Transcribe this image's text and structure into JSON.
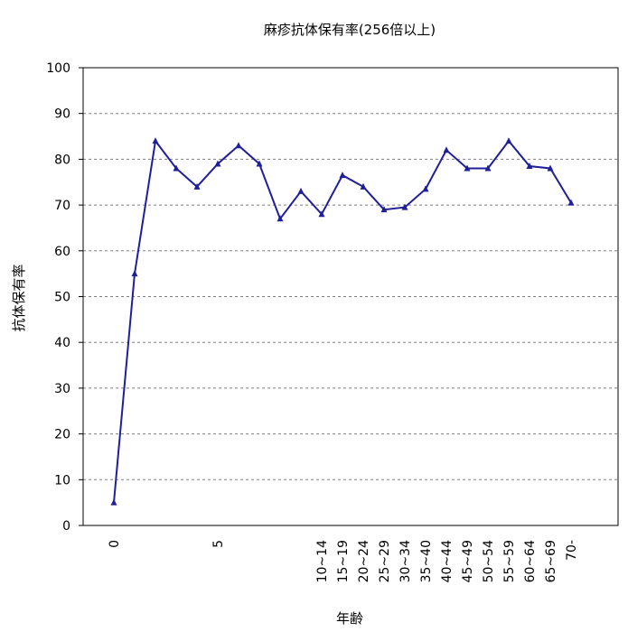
{
  "chart_data": {
    "type": "line",
    "title": "麻疹抗体保有率(256倍以上)",
    "xlabel": "年齢",
    "ylabel": "抗体保有率",
    "ylim": [
      0,
      100
    ],
    "yticks": [
      "0",
      "10",
      "20",
      "30",
      "40",
      "50",
      "60",
      "70",
      "80",
      "90",
      "100"
    ],
    "grid": "horizontal-dashed",
    "x_tick_labels": [
      {
        "label": "0",
        "x": 0
      },
      {
        "label": "5",
        "x": 5
      },
      {
        "label": "10~14",
        "x": 10
      },
      {
        "label": "15~19",
        "x": 11
      },
      {
        "label": "20~24",
        "x": 12
      },
      {
        "label": "25~29",
        "x": 13
      },
      {
        "label": "30~34",
        "x": 14
      },
      {
        "label": "35~40",
        "x": 15
      },
      {
        "label": "40~44",
        "x": 16
      },
      {
        "label": "45~49",
        "x": 17
      },
      {
        "label": "50~54",
        "x": 18
      },
      {
        "label": "55~59",
        "x": 19
      },
      {
        "label": "60~64",
        "x": 20
      },
      {
        "label": "65~69",
        "x": 21
      },
      {
        "label": "70-",
        "x": 22
      }
    ],
    "series": [
      {
        "color": "#1f1f99",
        "marker": "triangle",
        "points": [
          {
            "x": 0,
            "y": 5
          },
          {
            "x": 1,
            "y": 55
          },
          {
            "x": 2,
            "y": 84
          },
          {
            "x": 3,
            "y": 78
          },
          {
            "x": 4,
            "y": 74
          },
          {
            "x": 5,
            "y": 79
          },
          {
            "x": 6,
            "y": 83
          },
          {
            "x": 7,
            "y": 79
          },
          {
            "x": 8,
            "y": 67
          },
          {
            "x": 9,
            "y": 73
          },
          {
            "x": 10,
            "y": 68
          },
          {
            "x": 11,
            "y": 76.5
          },
          {
            "x": 12,
            "y": 74
          },
          {
            "x": 13,
            "y": 69
          },
          {
            "x": 14,
            "y": 69.5
          },
          {
            "x": 15,
            "y": 73.5
          },
          {
            "x": 16,
            "y": 82
          },
          {
            "x": 17,
            "y": 78
          },
          {
            "x": 18,
            "y": 78
          },
          {
            "x": 19,
            "y": 84
          },
          {
            "x": 20,
            "y": 78.5
          },
          {
            "x": 21,
            "y": 78
          },
          {
            "x": 22,
            "y": 70.5
          }
        ]
      }
    ]
  }
}
